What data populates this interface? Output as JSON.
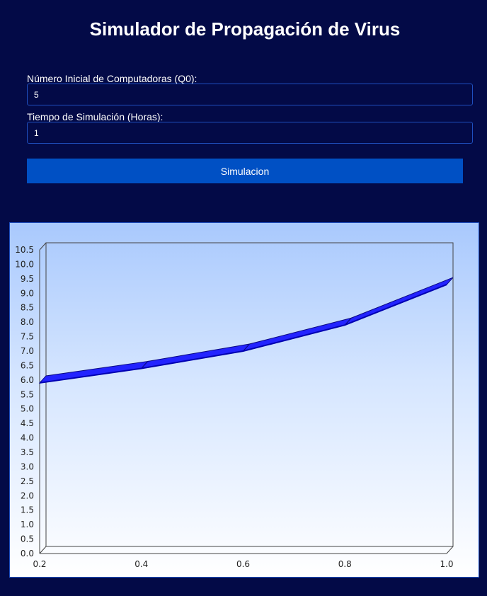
{
  "header": {
    "title": "Simulador de Propagación de Virus"
  },
  "form": {
    "q0_label": "Número Inicial de Computadoras (Q0):",
    "q0_value": "5",
    "time_label": "Tiempo de Simulación (Horas):",
    "time_value": "1",
    "submit_label": "Simulacion"
  },
  "chart_data": {
    "type": "line",
    "title": "",
    "xlabel": "",
    "ylabel": "",
    "x": [
      0.2,
      0.4,
      0.6,
      0.8,
      1.0
    ],
    "series": [
      {
        "values": [
          5.9,
          6.4,
          7.0,
          7.9,
          9.3
        ],
        "color": "#1010e6"
      }
    ],
    "xlim": [
      0.2,
      1.0
    ],
    "ylim": [
      0.0,
      10.5
    ],
    "x_ticks": [
      "0.2",
      "0.4",
      "0.6",
      "0.8",
      "1.0"
    ],
    "y_ticks": [
      "0.0",
      "0.5",
      "1.0",
      "1.5",
      "2.0",
      "2.5",
      "3.0",
      "3.5",
      "4.0",
      "4.5",
      "5.0",
      "5.5",
      "6.0",
      "6.5",
      "7.0",
      "7.5",
      "8.0",
      "8.5",
      "9.0",
      "9.5",
      "10.0",
      "10.5"
    ],
    "grid": false,
    "style": "3d"
  }
}
